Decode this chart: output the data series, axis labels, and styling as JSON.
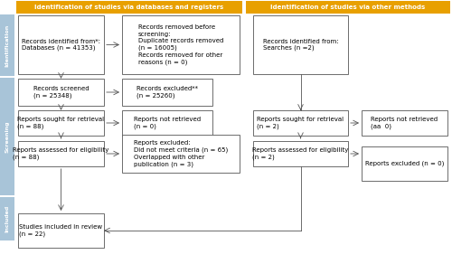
{
  "title_left": "Identification of studies via databases and registers",
  "title_right": "Identification of studies via other methods",
  "title_bg": "#E8A000",
  "title_text_color": "#FFFFFF",
  "box_bg": "#FFFFFF",
  "box_border": "#555555",
  "side_label_bg": "#A8C4D8",
  "side_labels": [
    "Identification",
    "Screening",
    "Included"
  ],
  "arrow_color": "#555555",
  "boxes": {
    "db_records": "Records identified from*:\nDatabases (n = 41353)",
    "removed_before": "Records removed before\nscreening:\nDuplicate records removed\n(n = 16005)\nRecords removed for other\nreasons (n = 0)",
    "screened": "Records screened\n(n = 25348)",
    "excluded": "Records excluded**\n(n = 25260)",
    "retrieval_db": "Reports sought for retrieval\n(n = 88)",
    "not_retrieved_db": "Reports not retrieved\n(n = 0)",
    "eligibility_db": "Reports assessed for eligibility\n(n = 88)",
    "reports_excluded": "Reports excluded:\nDid not meet criteria (n = 65)\nOverlapped with other\npublication (n = 3)",
    "included": "Studies included in review\n(n = 22)",
    "other_records": "Records identified from:\nSearches (n =2)",
    "retrieval_other": "Reports sought for retrieval\n(n = 2)",
    "not_retrieved_other": "Reports not retrieved\n(aa  0)",
    "eligibility_other": "Reports assessed for eligibility\n(n = 2)",
    "excluded_other": "Reports excluded (n = 0)"
  },
  "font_size": 5.0,
  "background_color": "#FFFFFF"
}
